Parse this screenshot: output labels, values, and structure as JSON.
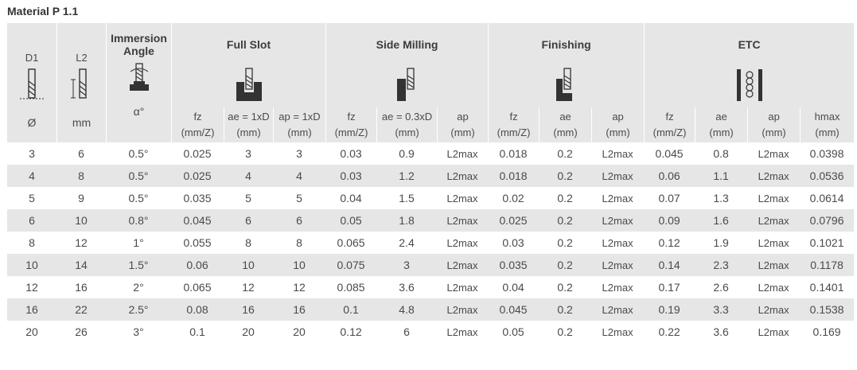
{
  "title": "Material P 1.1",
  "headers": {
    "d1": "D1",
    "l2": "L2",
    "immersion": "Immersion",
    "angle": "Angle",
    "full_slot": "Full Slot",
    "side_milling": "Side Milling",
    "finishing": "Finishing",
    "etc": "ETC"
  },
  "units": {
    "d1": "Ø",
    "l2": "mm",
    "immersion": "α°",
    "full_slot": [
      [
        "fz",
        "(mm/Z)"
      ],
      [
        "ae = 1xD",
        "(mm)"
      ],
      [
        "ap = 1xD",
        "(mm)"
      ]
    ],
    "side_milling": [
      [
        "fz",
        "(mm/Z)"
      ],
      [
        "ae = 0.3xD",
        "(mm)"
      ],
      [
        "ap",
        "(mm)"
      ]
    ],
    "finishing": [
      [
        "fz",
        "(mm/Z)"
      ],
      [
        "ae",
        "(mm)"
      ],
      [
        "ap",
        "(mm)"
      ]
    ],
    "etc": [
      [
        "fz",
        "(mm/Z)"
      ],
      [
        "ae",
        "(mm)"
      ],
      [
        "ap",
        "(mm)"
      ],
      [
        "hmax",
        "(mm)"
      ]
    ]
  },
  "rows": [
    [
      "3",
      "6",
      "0.5°",
      "0.025",
      "3",
      "3",
      "0.03",
      "0.9",
      "L2max",
      "0.018",
      "0.2",
      "L2max",
      "0.045",
      "0.8",
      "L2max",
      "0.0398"
    ],
    [
      "4",
      "8",
      "0.5°",
      "0.025",
      "4",
      "4",
      "0.03",
      "1.2",
      "L2max",
      "0.018",
      "0.2",
      "L2max",
      "0.06",
      "1.1",
      "L2max",
      "0.0536"
    ],
    [
      "5",
      "9",
      "0.5°",
      "0.035",
      "5",
      "5",
      "0.04",
      "1.5",
      "L2max",
      "0.02",
      "0.2",
      "L2max",
      "0.07",
      "1.3",
      "L2max",
      "0.0614"
    ],
    [
      "6",
      "10",
      "0.8°",
      "0.045",
      "6",
      "6",
      "0.05",
      "1.8",
      "L2max",
      "0.025",
      "0.2",
      "L2max",
      "0.09",
      "1.6",
      "L2max",
      "0.0796"
    ],
    [
      "8",
      "12",
      "1°",
      "0.055",
      "8",
      "8",
      "0.065",
      "2.4",
      "L2max",
      "0.03",
      "0.2",
      "L2max",
      "0.12",
      "1.9",
      "L2max",
      "0.1021"
    ],
    [
      "10",
      "14",
      "1.5°",
      "0.06",
      "10",
      "10",
      "0.075",
      "3",
      "L2max",
      "0.035",
      "0.2",
      "L2max",
      "0.14",
      "2.3",
      "L2max",
      "0.1178"
    ],
    [
      "12",
      "16",
      "2°",
      "0.065",
      "12",
      "12",
      "0.085",
      "3.6",
      "L2max",
      "0.04",
      "0.2",
      "L2max",
      "0.17",
      "2.6",
      "L2max",
      "0.1401"
    ],
    [
      "16",
      "22",
      "2.5°",
      "0.08",
      "16",
      "16",
      "0.1",
      "4.8",
      "L2max",
      "0.045",
      "0.2",
      "L2max",
      "0.19",
      "3.3",
      "L2max",
      "0.1538"
    ],
    [
      "20",
      "26",
      "3°",
      "0.1",
      "20",
      "20",
      "0.12",
      "6",
      "L2max",
      "0.05",
      "0.2",
      "L2max",
      "0.22",
      "3.6",
      "L2max",
      "0.169"
    ]
  ]
}
